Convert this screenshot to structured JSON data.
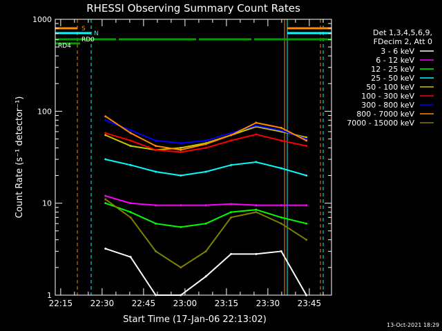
{
  "chart_data": {
    "type": "line",
    "title": "RHESSI Observing Summary Count Rates",
    "xlabel": "Start Time (17-Jan-06 22:13:02)",
    "ylabel": "Count Rate (s⁻¹ detector⁻¹)",
    "yscale": "log",
    "ylim": [
      1,
      1000
    ],
    "xlim_minutes_after_start": [
      0,
      100
    ],
    "x_ticks": [
      "22:15",
      "22:30",
      "22:45",
      "23:00",
      "23:15",
      "23:30",
      "23:45"
    ],
    "y_ticks": [
      "1",
      "10",
      "100",
      "1000"
    ],
    "footer_stamp": "13-Oct-2021 18:29",
    "legend_header": [
      "Det 1,3,4,5,6,9,",
      "FDecim 2, Att 0"
    ],
    "flags": [
      {
        "label": "S",
        "color": "#ff8c00"
      },
      {
        "label": "N",
        "color": "#00ffff"
      },
      {
        "label": "RD0",
        "color": "#00a000"
      },
      {
        "label": "RD4",
        "color": "#00a000"
      }
    ],
    "series": [
      {
        "name": "3 - 6 keV",
        "color": "#ffffff",
        "values": [
          null,
          null,
          3.2,
          2.6,
          1.0,
          1.0,
          1.6,
          2.8,
          2.8,
          3.0,
          1.0,
          null
        ]
      },
      {
        "name": "6 - 12 keV",
        "color": "#ff00ff",
        "values": [
          null,
          null,
          12,
          10,
          9.5,
          9.5,
          9.5,
          9.8,
          9.5,
          9.5,
          9.5,
          null
        ]
      },
      {
        "name": "12 - 25 keV",
        "color": "#00ff00",
        "values": [
          null,
          null,
          10,
          8,
          6,
          5.5,
          6,
          8,
          8.5,
          7,
          6,
          null
        ]
      },
      {
        "name": "25 - 50 keV",
        "color": "#00ffff",
        "values": [
          null,
          null,
          30,
          26,
          22,
          20,
          22,
          26,
          28,
          24,
          20,
          null
        ]
      },
      {
        "name": "50 - 100 keV",
        "color": "#c8c800",
        "values": [
          null,
          null,
          55,
          42,
          38,
          40,
          45,
          55,
          68,
          60,
          52,
          null
        ]
      },
      {
        "name": "100 - 300 keV",
        "color": "#ff0000",
        "values": [
          null,
          null,
          58,
          48,
          38,
          36,
          40,
          48,
          56,
          48,
          42,
          null
        ]
      },
      {
        "name": "300 - 800 keV",
        "color": "#0000ff",
        "values": [
          null,
          null,
          80,
          62,
          48,
          45,
          48,
          58,
          70,
          62,
          50,
          null
        ]
      },
      {
        "name": "800 - 7000 keV",
        "color": "#ff8c00",
        "values": [
          null,
          null,
          88,
          58,
          42,
          38,
          44,
          55,
          75,
          66,
          48,
          null
        ]
      },
      {
        "name": "7000 - 15000 keV",
        "color": "#808000",
        "values": [
          null,
          null,
          11,
          7,
          3,
          2,
          3,
          7,
          8,
          6,
          4,
          null
        ]
      }
    ]
  }
}
